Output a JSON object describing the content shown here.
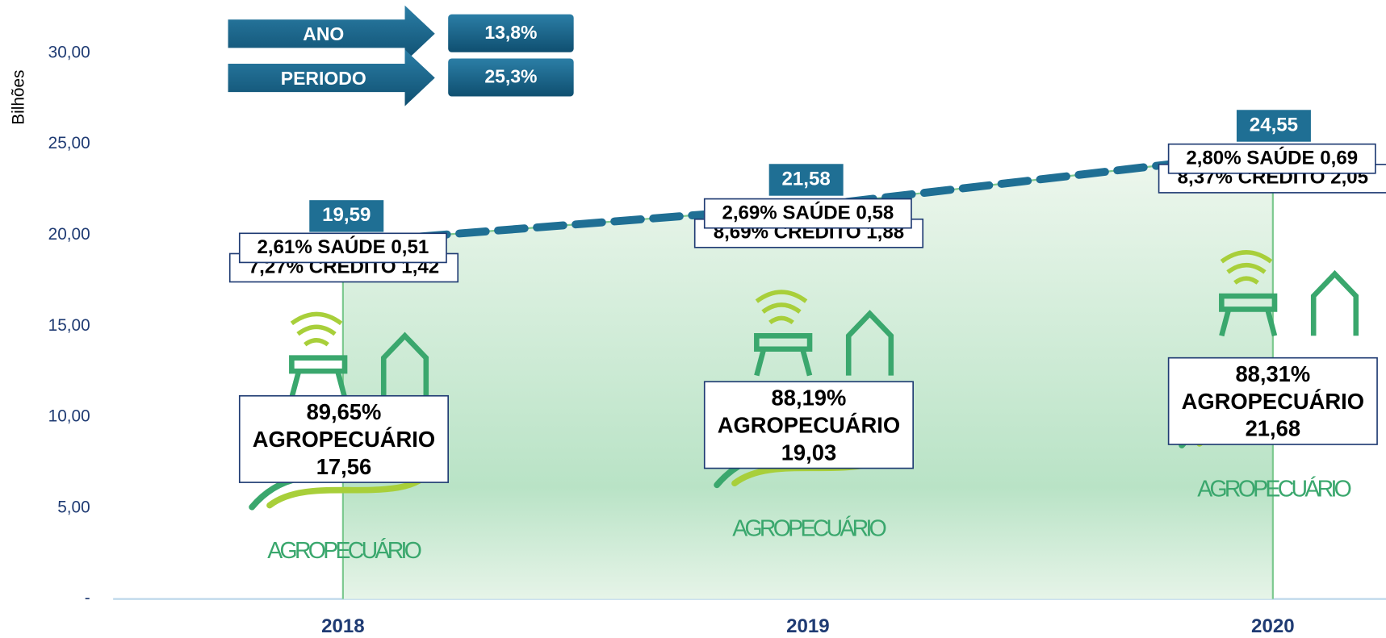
{
  "chart_data": {
    "type": "line",
    "y_axis_label": "Bilhões",
    "categories": [
      "2018",
      "2019",
      "2020"
    ],
    "values": [
      19.59,
      21.58,
      24.55
    ],
    "value_labels": [
      "19,59",
      "21,58",
      "24,55"
    ],
    "color": "#1f6f94",
    "ylim": [
      0,
      30
    ],
    "yticks": [
      {
        "value": 0,
        "label": "-"
      },
      {
        "value": 5,
        "label": "5,00"
      },
      {
        "value": 10,
        "label": "10,00"
      },
      {
        "value": 15,
        "label": "15,00"
      },
      {
        "value": 20,
        "label": "20,00"
      },
      {
        "value": 25,
        "label": "25,00"
      },
      {
        "value": 30,
        "label": "30,00"
      }
    ],
    "growth": [
      {
        "label": "ANO",
        "value": "13,8%"
      },
      {
        "label": "PERIODO",
        "value": "25,3%"
      }
    ],
    "breakdown": [
      {
        "saude": "2,61% SAÚDE  0,51",
        "credito": "7,27% CRÉDITO  1,42",
        "agro": [
          "89,65%",
          "AGROPECUÁRIO",
          "17,56"
        ]
      },
      {
        "saude": "2,69% SAÚDE  0,58",
        "credito": "8,69% CREDITO  1,88",
        "agro": [
          "88,19%",
          "AGROPECUÁRIO",
          "19,03"
        ]
      },
      {
        "saude": "2,80% SAÚDE  0,69",
        "credito": "8,37% CRÉDITO  2,05",
        "agro": [
          "88,31%",
          "AGROPECUÁRIO",
          "21,68"
        ]
      }
    ],
    "logo_text": "AGROPECUÁRIO"
  }
}
